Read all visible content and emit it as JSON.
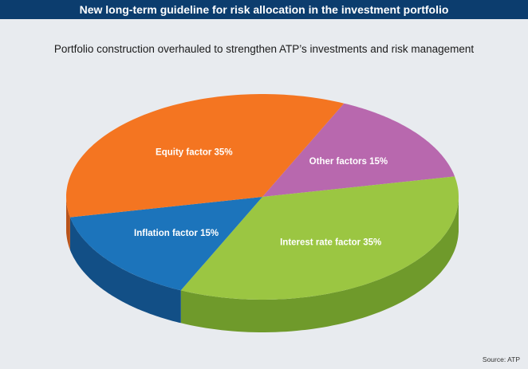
{
  "header": {
    "title": "New long-term guideline for risk allocation in the investment portfolio"
  },
  "chart_data": {
    "type": "pie",
    "title": "New long-term guideline for risk allocation in the investment portfolio",
    "subtitle": "Portfolio construction overhauled to strengthen ATP’s investments and risk management",
    "slices": [
      {
        "label": "Other factors 15%",
        "value": 15,
        "color": "#b868ae",
        "side": "#8f4f87"
      },
      {
        "label": "Interest rate factor 35%",
        "value": 35,
        "color": "#9bc642",
        "side": "#6f9a2b"
      },
      {
        "label": "Inflation factor 15%",
        "value": 15,
        "color": "#1c74bb",
        "side": "#124f86"
      },
      {
        "label": "Equity factor 35%",
        "value": 35,
        "color": "#f47521",
        "side": "#b9531a"
      }
    ]
  },
  "footer": {
    "source": "Source: ATP"
  }
}
